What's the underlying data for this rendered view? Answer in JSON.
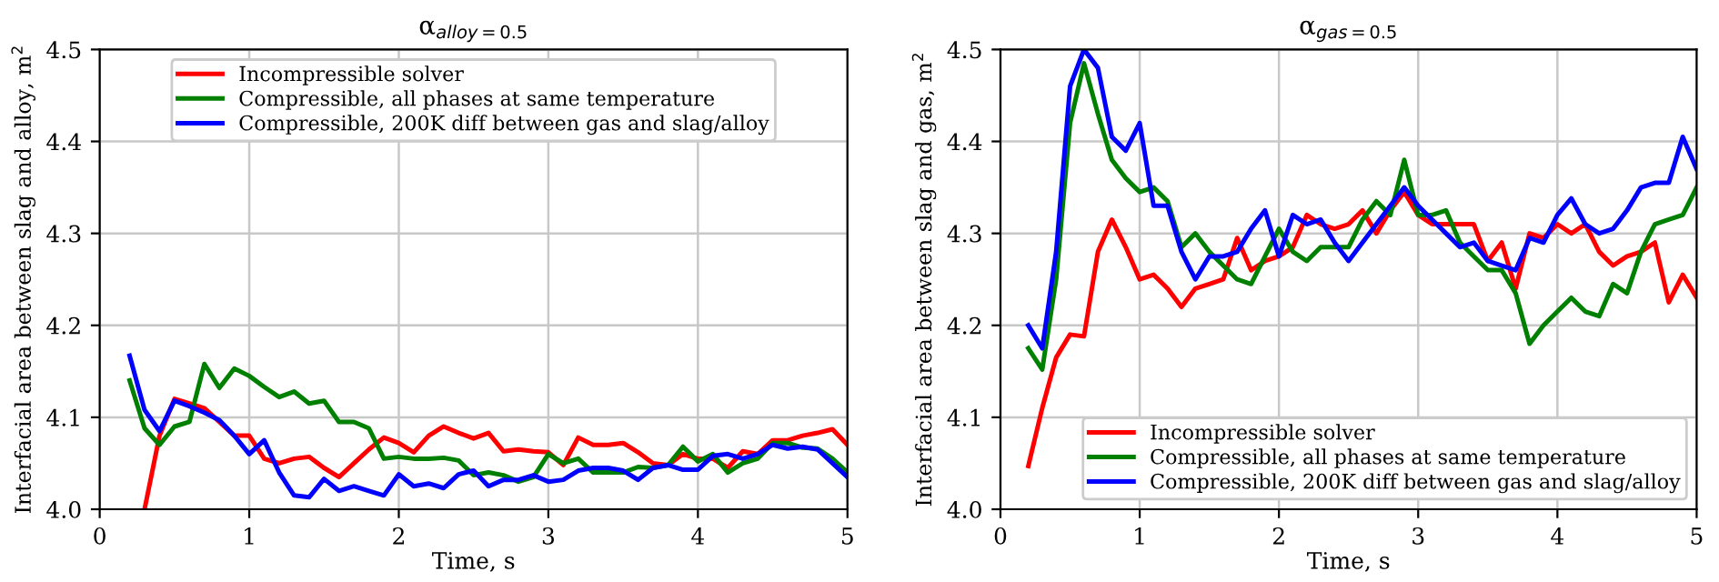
{
  "chart_data": [
    {
      "type": "line",
      "title": "α$_{alloy=0.5}$",
      "xlabel": "Time, s",
      "ylabel": "Interfacial area between slag and alloy, m$^{2}$",
      "x": [
        0.2,
        0.3,
        0.4,
        0.5,
        0.6,
        0.7,
        0.8,
        0.9,
        1.0,
        1.1,
        1.2,
        1.3,
        1.4,
        1.5,
        1.6,
        1.7,
        1.8,
        1.9,
        2.0,
        2.1,
        2.2,
        2.3,
        2.4,
        2.5,
        2.6,
        2.7,
        2.8,
        2.9,
        3.0,
        3.1,
        3.2,
        3.3,
        3.4,
        3.5,
        3.6,
        3.7,
        3.8,
        3.9,
        4.0,
        4.1,
        4.2,
        4.3,
        4.4,
        4.5,
        4.6,
        4.7,
        4.8,
        4.9,
        5.0
      ],
      "series": [
        {
          "name": "Incompressible solver",
          "color": "#ff0000",
          "values": [
            null,
            4.0,
            4.08,
            4.12,
            4.115,
            4.11,
            4.095,
            4.08,
            4.08,
            4.055,
            4.05,
            4.055,
            4.057,
            4.045,
            4.035,
            4.05,
            4.065,
            4.078,
            4.072,
            4.062,
            4.08,
            4.09,
            4.083,
            4.077,
            4.083,
            4.063,
            4.065,
            4.063,
            4.062,
            4.048,
            4.078,
            4.07,
            4.07,
            4.072,
            4.062,
            4.05,
            4.048,
            4.06,
            4.055,
            4.055,
            4.045,
            4.063,
            4.06,
            4.075,
            4.075,
            4.08,
            4.083,
            4.087,
            4.07
          ]
        },
        {
          "name": "Compressible, all phases at same temperature",
          "color": "#008000",
          "values": [
            4.14,
            4.088,
            4.07,
            4.09,
            4.095,
            4.158,
            4.132,
            4.153,
            4.145,
            4.133,
            4.122,
            4.128,
            4.115,
            4.118,
            4.095,
            4.095,
            4.088,
            4.055,
            4.057,
            4.055,
            4.055,
            4.056,
            4.053,
            4.037,
            4.04,
            4.037,
            4.03,
            4.035,
            4.06,
            4.05,
            4.055,
            4.04,
            4.04,
            4.04,
            4.046,
            4.045,
            4.048,
            4.068,
            4.052,
            4.06,
            4.04,
            4.05,
            4.055,
            4.072,
            4.072,
            4.067,
            4.066,
            4.055,
            4.04
          ]
        },
        {
          "name": "Compressible, 200K diff between gas and slag/alloy",
          "color": "#0000ff",
          "values": [
            4.167,
            4.108,
            4.085,
            4.118,
            4.112,
            4.105,
            4.097,
            4.08,
            4.06,
            4.075,
            4.04,
            4.015,
            4.013,
            4.033,
            4.02,
            4.025,
            4.02,
            4.015,
            4.038,
            4.025,
            4.028,
            4.023,
            4.038,
            4.042,
            4.025,
            4.032,
            4.032,
            4.037,
            4.03,
            4.032,
            4.042,
            4.045,
            4.045,
            4.042,
            4.032,
            4.045,
            4.048,
            4.043,
            4.043,
            4.058,
            4.06,
            4.055,
            4.06,
            4.07,
            4.066,
            4.068,
            4.065,
            4.05,
            4.035
          ]
        }
      ],
      "xlim": [
        0,
        5
      ],
      "ylim": [
        4.0,
        4.5
      ],
      "xticks": [
        0,
        1,
        2,
        3,
        4,
        5
      ],
      "yticks": [
        {
          "value": 4,
          "label": "4.0"
        },
        4.1,
        4.2,
        4.3,
        4.4,
        4.5
      ],
      "grid": true,
      "legend": "top"
    },
    {
      "type": "line",
      "title": "α$_{gas=0.5}$",
      "xlabel": "Time, s",
      "ylabel": "Interfacial area between slag and gas, m$^{2}$",
      "x": [
        0.2,
        0.3,
        0.4,
        0.5,
        0.6,
        0.7,
        0.8,
        0.9,
        1.0,
        1.1,
        1.2,
        1.3,
        1.4,
        1.5,
        1.6,
        1.7,
        1.8,
        1.9,
        2.0,
        2.1,
        2.2,
        2.3,
        2.4,
        2.5,
        2.6,
        2.7,
        2.8,
        2.9,
        3.0,
        3.1,
        3.2,
        3.3,
        3.4,
        3.5,
        3.6,
        3.7,
        3.8,
        3.9,
        4.0,
        4.1,
        4.2,
        4.3,
        4.4,
        4.5,
        4.6,
        4.7,
        4.8,
        4.9,
        5.0
      ],
      "series": [
        {
          "name": "Incompressible solver",
          "color": "#ff0000",
          "values": [
            4.047,
            4.11,
            4.165,
            4.19,
            4.188,
            4.28,
            4.315,
            4.285,
            4.25,
            4.255,
            4.24,
            4.22,
            4.24,
            4.245,
            4.25,
            4.295,
            4.26,
            4.27,
            4.275,
            4.285,
            4.32,
            4.31,
            4.305,
            4.31,
            4.325,
            4.3,
            4.325,
            4.345,
            4.32,
            4.31,
            4.31,
            4.31,
            4.31,
            4.27,
            4.29,
            4.24,
            4.3,
            4.295,
            4.31,
            4.3,
            4.31,
            4.28,
            4.265,
            4.275,
            4.28,
            4.29,
            4.225,
            4.255,
            4.23
          ]
        },
        {
          "name": "Compressible, all phases at same temperature",
          "color": "#008000",
          "values": [
            4.175,
            4.152,
            4.25,
            4.42,
            4.485,
            4.43,
            4.38,
            4.36,
            4.345,
            4.35,
            4.335,
            4.285,
            4.3,
            4.28,
            4.265,
            4.25,
            4.245,
            4.275,
            4.305,
            4.28,
            4.27,
            4.285,
            4.285,
            4.285,
            4.315,
            4.335,
            4.32,
            4.38,
            4.32,
            4.32,
            4.325,
            4.29,
            4.275,
            4.26,
            4.26,
            4.235,
            4.18,
            4.2,
            4.215,
            4.23,
            4.215,
            4.21,
            4.245,
            4.235,
            4.28,
            4.31,
            4.315,
            4.32,
            4.35
          ]
        },
        {
          "name": "Compressible, 200K diff between gas and slag/alloy",
          "color": "#0000ff",
          "values": [
            4.2,
            4.175,
            4.28,
            4.46,
            4.5,
            4.48,
            4.405,
            4.39,
            4.42,
            4.33,
            4.33,
            4.28,
            4.25,
            4.275,
            4.275,
            4.28,
            4.305,
            4.325,
            4.275,
            4.32,
            4.31,
            4.315,
            4.29,
            4.27,
            4.29,
            4.31,
            4.33,
            4.35,
            4.33,
            4.315,
            4.3,
            4.285,
            4.29,
            4.27,
            4.265,
            4.26,
            4.295,
            4.29,
            4.32,
            4.338,
            4.31,
            4.3,
            4.305,
            4.325,
            4.35,
            4.355,
            4.355,
            4.405,
            4.37
          ]
        }
      ],
      "xlim": [
        0,
        5
      ],
      "ylim": [
        4.0,
        4.5
      ],
      "xticks": [
        0,
        1,
        2,
        3,
        4,
        5
      ],
      "yticks": [
        {
          "value": 4,
          "label": "4.0"
        },
        4.1,
        4.2,
        4.3,
        4.4,
        4.5
      ],
      "grid": true,
      "legend": "bottom right"
    }
  ]
}
